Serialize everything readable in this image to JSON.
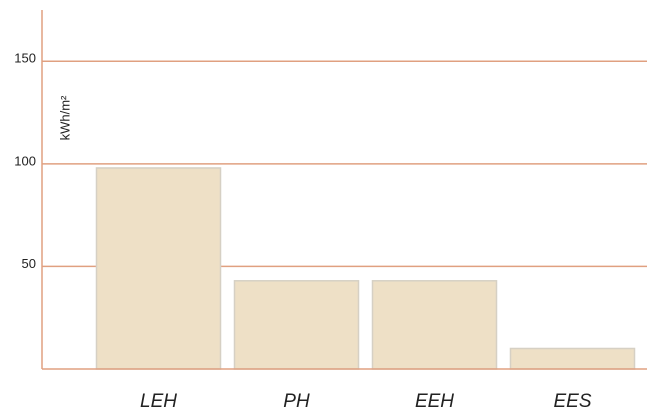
{
  "chart_data": {
    "type": "bar",
    "y_label": "kWh/m²",
    "categories": [
      "LEH",
      "PH",
      "EEH",
      "EES"
    ],
    "values": [
      98,
      43,
      43,
      10
    ],
    "color": "#eee0c6",
    "ylim": [
      0,
      175
    ],
    "yticks": [
      50,
      100,
      150
    ],
    "grid": true
  }
}
